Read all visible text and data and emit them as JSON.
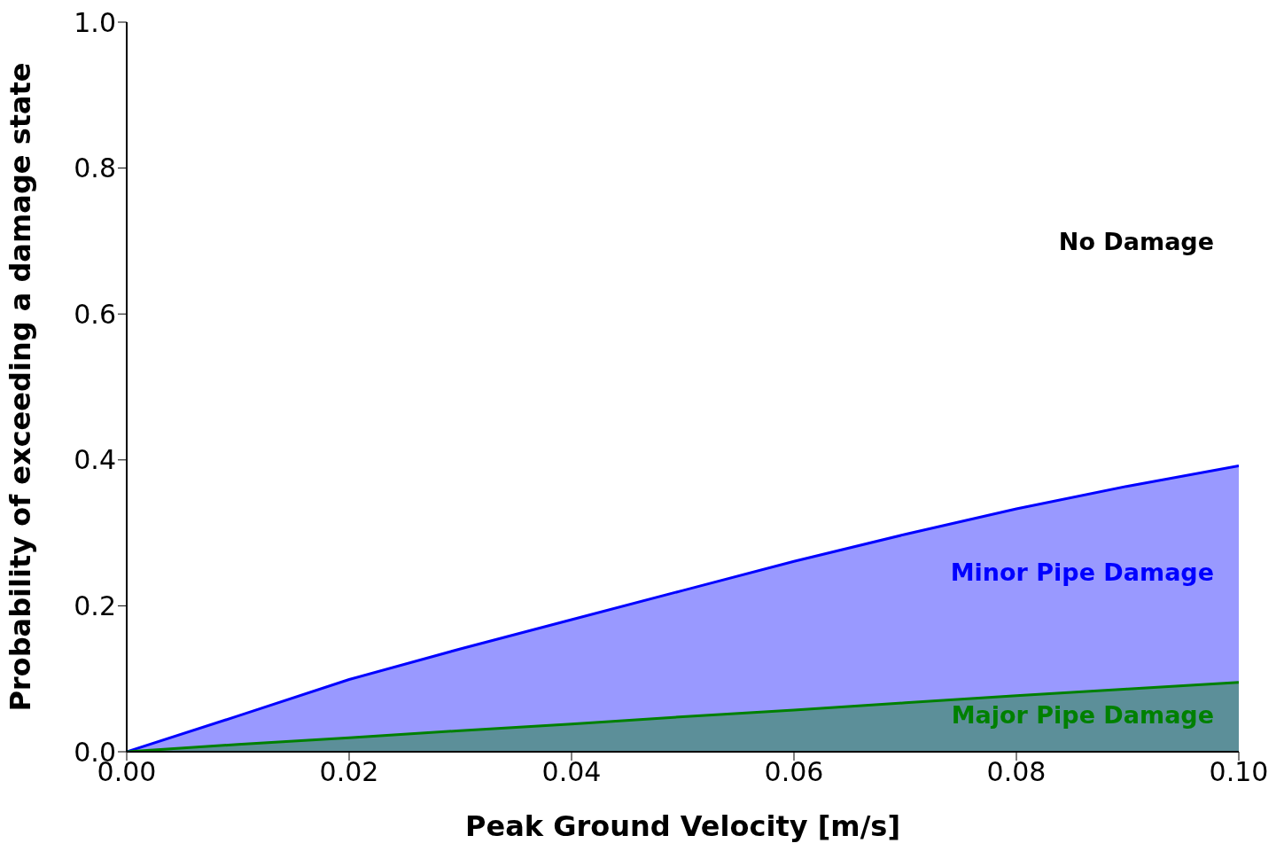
{
  "chart_data": {
    "type": "area",
    "xlabel": "Peak Ground Velocity [m/s]",
    "ylabel": "Probability of exceeding a damage state",
    "x": [
      0,
      0.01,
      0.02,
      0.03,
      0.04,
      0.05,
      0.06,
      0.07,
      0.08,
      0.09,
      0.1
    ],
    "series": [
      {
        "name": "Minor Pipe Damage",
        "color": "#0000ff",
        "values": [
          0,
          0.049,
          0.099,
          0.141,
          0.181,
          0.221,
          0.261,
          0.298,
          0.333,
          0.364,
          0.392
        ]
      },
      {
        "name": "Major Pipe Damage",
        "color": "#008000",
        "values": [
          0,
          0.01,
          0.019,
          0.029,
          0.038,
          0.048,
          0.057,
          0.067,
          0.077,
          0.086,
          0.095
        ]
      }
    ],
    "annotations": [
      "No Damage"
    ],
    "xlim": [
      0,
      0.1
    ],
    "ylim": [
      0,
      1
    ],
    "xticks": [
      {
        "value": 0,
        "label": "0.00"
      },
      {
        "value": 0.02,
        "label": "0.02"
      },
      {
        "value": 0.04,
        "label": "0.04"
      },
      {
        "value": 0.06,
        "label": "0.06"
      },
      {
        "value": 0.08,
        "label": "0.08"
      },
      {
        "value": 0.1,
        "label": "0.10"
      }
    ],
    "yticks": [
      {
        "value": 0,
        "label": "0.0"
      },
      {
        "value": 0.2,
        "label": "0.2"
      },
      {
        "value": 0.4,
        "label": "0.4"
      },
      {
        "value": 0.6,
        "label": "0.6"
      },
      {
        "value": 0.8,
        "label": "0.8"
      },
      {
        "value": 1,
        "label": "1.0"
      }
    ],
    "grid": false,
    "legend": false
  }
}
